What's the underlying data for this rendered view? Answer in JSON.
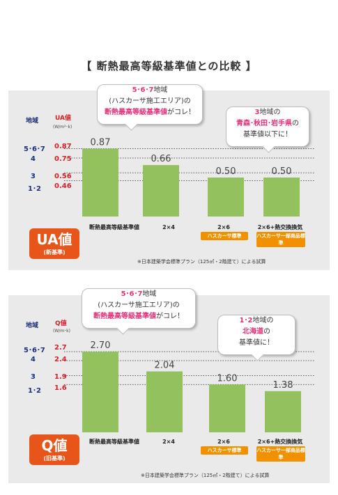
{
  "heading": "【 断熱最高等級基準値との比較 】",
  "categories": [
    "断熱最高等級基準値",
    "2×4",
    "2×6",
    "2×6+熱交換換気"
  ],
  "tags": [
    "ハスカーサ標準",
    "ハスカーサ一部商品標準"
  ],
  "colors": {
    "bar": "#93c15d",
    "accent": "#e8551a",
    "tag": "#f29100",
    "pink": "#e4307a",
    "navy": "#1d2f7a",
    "red": "#d3222a"
  },
  "footnote": "※日本建築学会標準プラン（125㎡・2階建て）による試算",
  "top": {
    "region_header": "地域",
    "value_header": "UA値",
    "unit": "(W/m²･k)",
    "rows": [
      {
        "region": "5･6･7",
        "value": "0.87"
      },
      {
        "region": "4",
        "value": "0.75"
      },
      {
        "region": "3",
        "value": "0.56"
      },
      {
        "region": "1･2",
        "value": "0.46"
      }
    ],
    "badge_main": "UA値",
    "badge_sub": "(新基準)",
    "bubble1": {
      "line1": "5･6･7",
      "line1b": "地域",
      "line2": "(ハスカーサ施工エリア)の",
      "line3": "断熱最高等級基準値",
      "line3b": "がコレ！"
    },
    "bubble2": {
      "line1": "3",
      "line1b": "地域の",
      "line2": "青森･秋田･岩手県",
      "line2b": "の",
      "line3": "基準値以下に！"
    },
    "chart_data": {
      "type": "bar",
      "categories": [
        "断熱最高等級基準値",
        "2×4",
        "2×6",
        "2×6+熱交換換気"
      ],
      "values": [
        0.87,
        0.66,
        0.5,
        0.5
      ],
      "value_labels": [
        "0.87",
        "0.66",
        "0.50",
        "0.50"
      ],
      "reference_lines": [
        0.87,
        0.75,
        0.56,
        0.46
      ],
      "ylim": [
        0,
        1.0
      ]
    }
  },
  "bottom": {
    "region_header": "地域",
    "value_header": "Q値",
    "unit": "(W/m･k)",
    "rows": [
      {
        "region": "5･6･7",
        "value": "2.7"
      },
      {
        "region": "4",
        "value": "2.4"
      },
      {
        "region": "3",
        "value": "1.9"
      },
      {
        "region": "1･2",
        "value": "1.6"
      }
    ],
    "badge_main": "Q値",
    "badge_sub": "(旧基準)",
    "bubble1": {
      "line1": "5･6･7",
      "line1b": "地域",
      "line2": "(ハスカーサ施工エリア)の",
      "line3": "断熱最高等級基準値",
      "line3b": "がコレ！"
    },
    "bubble2": {
      "line1": "1･2",
      "line1b": "地域の",
      "line2": "北海道",
      "line2b": "の",
      "line3": "基準値に！"
    },
    "chart_data": {
      "type": "bar",
      "categories": [
        "断熱最高等級基準値",
        "2×4",
        "2×6",
        "2×6+熱交換換気"
      ],
      "values": [
        2.7,
        2.04,
        1.6,
        1.38
      ],
      "value_labels": [
        "2.70",
        "2.04",
        "1.60",
        "1.38"
      ],
      "reference_lines": [
        2.7,
        2.4,
        1.9,
        1.6
      ],
      "ylim": [
        0,
        3.1
      ]
    }
  }
}
